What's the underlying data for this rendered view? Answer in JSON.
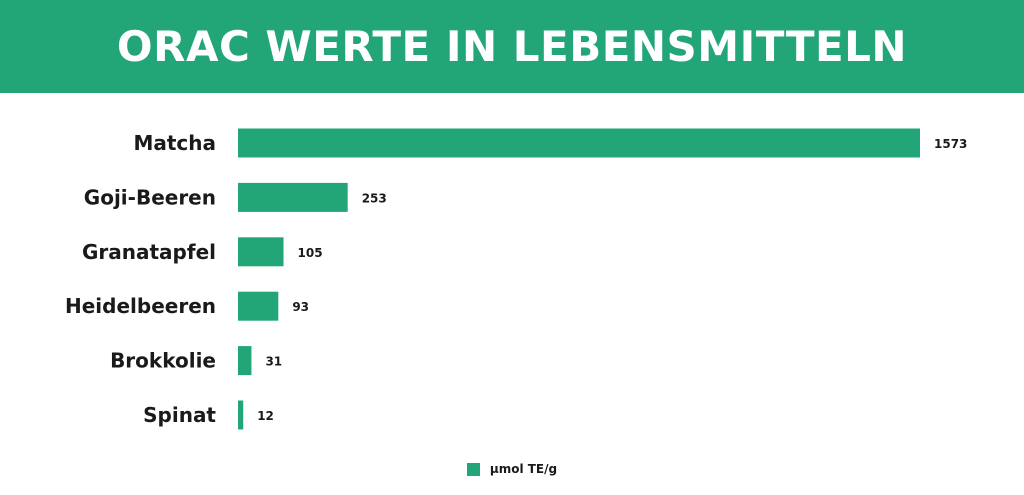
{
  "colors": {
    "accent": "#22a678",
    "bar": "#22a678",
    "text": "#1a1a1a"
  },
  "chart_data": {
    "type": "bar",
    "orientation": "horizontal",
    "title": "ORAC WERTE IN LEBENSMITTELN",
    "categories": [
      "Matcha",
      "Goji-Beeren",
      "Granatapfel",
      "Heidelbeeren",
      "Brokkolie",
      "Spinat"
    ],
    "series": [
      {
        "name": "µmol TE/g",
        "values": [
          1573,
          253,
          105,
          93,
          31,
          12
        ]
      }
    ],
    "value_labels": [
      "1573",
      "253",
      "105",
      "93",
      "31",
      "12"
    ],
    "xlim": [
      0,
      1573
    ],
    "grid": false,
    "legend": "bottom-center"
  }
}
